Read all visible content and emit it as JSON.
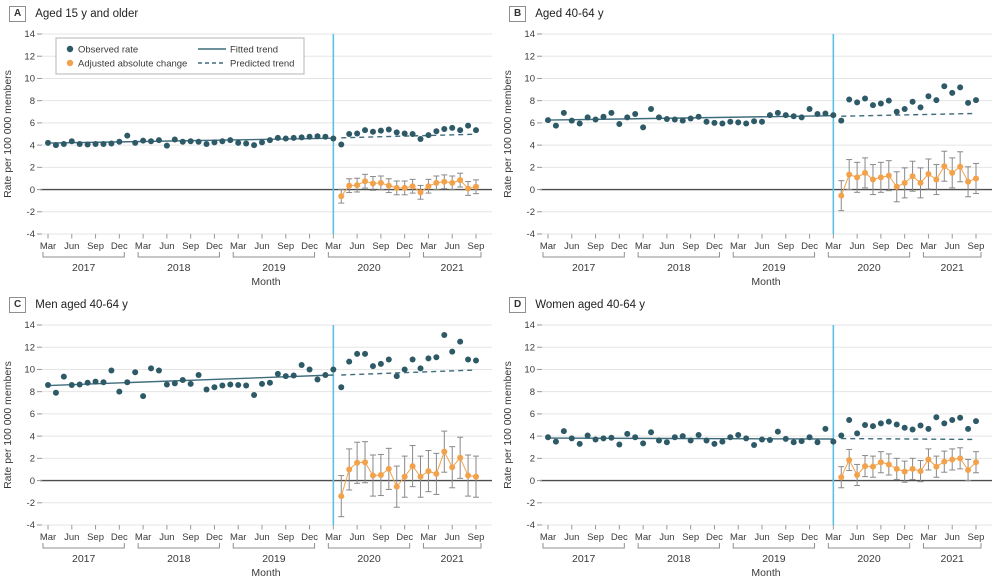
{
  "figure": {
    "ylabel": "Rate per 100 000 members",
    "xlabel": "Month",
    "legend": {
      "observed": "Observed rate",
      "change": "Adjusted absolute change",
      "fitted": "Fitted trend",
      "predicted": "Predicted trend"
    },
    "colors": {
      "observed": "#2E5A68",
      "change": "#F2A24B",
      "trend": "#3F6C7C",
      "intervention": "#5BC2E7",
      "grid": "#E5E5E5",
      "zero": "#4D4D4D",
      "error": "#898989",
      "text": "#3A3A3A"
    }
  },
  "chart_data": [
    {
      "type": "scatter",
      "panel_label": "A",
      "title": "Aged 15 y and older",
      "show_legend": true,
      "ylim": [
        -4,
        14
      ],
      "yticks": [
        14,
        12,
        10,
        8,
        6,
        4,
        2,
        0,
        -2,
        -4
      ],
      "x_tick_months": [
        0,
        3,
        6,
        9,
        12,
        15,
        18,
        21,
        24,
        27,
        30,
        33,
        36,
        39,
        42,
        45,
        48,
        51,
        54
      ],
      "x_tick_labels": [
        "Mar",
        "Jun",
        "Sep",
        "Dec",
        "Mar",
        "Jun",
        "Sep",
        "Dec",
        "Mar",
        "Jun",
        "Sep",
        "Dec",
        "Mar",
        "Jun",
        "Sep",
        "Dec",
        "Mar",
        "Jun",
        "Sep"
      ],
      "year_groups": [
        {
          "label": "2017",
          "start": 0,
          "end": 9
        },
        {
          "label": "2018",
          "start": 12,
          "end": 21
        },
        {
          "label": "2019",
          "start": 24,
          "end": 33
        },
        {
          "label": "2020",
          "start": 36,
          "end": 45
        },
        {
          "label": "2021",
          "start": 48,
          "end": 54
        }
      ],
      "intervention_month": 36,
      "pre_observed": {
        "start_month": 0,
        "values": [
          4.2,
          4.0,
          4.1,
          4.35,
          4.1,
          4.05,
          4.1,
          4.1,
          4.15,
          4.3,
          4.85,
          4.2,
          4.4,
          4.35,
          4.45,
          3.95,
          4.5,
          4.3,
          4.35,
          4.3,
          4.1,
          4.25,
          4.35,
          4.45,
          4.2,
          4.15,
          4.0,
          4.25,
          4.45,
          4.65,
          4.6,
          4.65,
          4.7,
          4.75,
          4.8,
          4.75,
          4.6
        ]
      },
      "post_observed": {
        "start_month": 37,
        "values": [
          4.05,
          5.0,
          5.05,
          5.35,
          5.2,
          5.3,
          5.4,
          5.15,
          5.05,
          5.0,
          4.55,
          4.9,
          5.25,
          5.45,
          5.55,
          5.35,
          5.75,
          5.35
        ]
      },
      "fitted_trend": {
        "x": [
          0,
          36
        ],
        "y": [
          4.18,
          4.62
        ]
      },
      "predicted_trend": {
        "x": [
          37,
          54
        ],
        "y": [
          4.66,
          4.98
        ]
      },
      "adjusted_change": {
        "start_month": 37,
        "ci_half": 0.62,
        "values": [
          -0.6,
          0.35,
          0.4,
          0.75,
          0.55,
          0.6,
          0.35,
          0.15,
          0.15,
          0.3,
          -0.25,
          0.3,
          0.6,
          0.7,
          0.6,
          0.85,
          0.1,
          0.25
        ]
      }
    },
    {
      "type": "scatter",
      "panel_label": "B",
      "title": "Aged 40-64 y",
      "show_legend": false,
      "ylim": [
        -4,
        14
      ],
      "yticks": [
        14,
        12,
        10,
        8,
        6,
        4,
        2,
        0,
        -2,
        -4
      ],
      "x_tick_months": [
        0,
        3,
        6,
        9,
        12,
        15,
        18,
        21,
        24,
        27,
        30,
        33,
        36,
        39,
        42,
        45,
        48,
        51,
        54
      ],
      "x_tick_labels": [
        "Mar",
        "Jun",
        "Sep",
        "Dec",
        "Mar",
        "Jun",
        "Sep",
        "Dec",
        "Mar",
        "Jun",
        "Sep",
        "Dec",
        "Mar",
        "Jun",
        "Sep",
        "Dec",
        "Mar",
        "Jun",
        "Sep"
      ],
      "year_groups": [
        {
          "label": "2017",
          "start": 0,
          "end": 9
        },
        {
          "label": "2018",
          "start": 12,
          "end": 21
        },
        {
          "label": "2019",
          "start": 24,
          "end": 33
        },
        {
          "label": "2020",
          "start": 36,
          "end": 45
        },
        {
          "label": "2021",
          "start": 48,
          "end": 54
        }
      ],
      "intervention_month": 36,
      "pre_observed": {
        "start_month": 0,
        "values": [
          6.25,
          5.75,
          6.9,
          6.2,
          5.95,
          6.5,
          6.3,
          6.55,
          6.9,
          5.9,
          6.5,
          6.8,
          5.6,
          7.25,
          6.5,
          6.35,
          6.3,
          6.2,
          6.4,
          6.55,
          6.1,
          6.0,
          5.95,
          6.1,
          6.05,
          5.95,
          6.15,
          6.1,
          6.7,
          6.9,
          6.7,
          6.6,
          6.5,
          7.25,
          6.8,
          6.85,
          6.7
        ]
      },
      "post_observed": {
        "start_month": 37,
        "values": [
          6.2,
          8.1,
          7.85,
          8.2,
          7.6,
          7.75,
          8.0,
          7.0,
          7.25,
          7.9,
          7.4,
          8.4,
          8.05,
          9.3,
          8.7,
          9.2,
          7.8,
          8.05
        ]
      },
      "fitted_trend": {
        "x": [
          0,
          36
        ],
        "y": [
          6.25,
          6.65
        ]
      },
      "predicted_trend": {
        "x": [
          37,
          54
        ],
        "y": [
          6.6,
          6.85
        ]
      },
      "adjusted_change": {
        "start_month": 37,
        "ci_half": 1.35,
        "values": [
          -0.55,
          1.35,
          1.1,
          1.5,
          0.9,
          1.1,
          1.25,
          0.25,
          0.6,
          1.2,
          0.6,
          1.4,
          0.9,
          2.1,
          1.5,
          2.05,
          0.7,
          1.0
        ]
      }
    },
    {
      "type": "scatter",
      "panel_label": "C",
      "title": "Men aged 40-64 y",
      "show_legend": false,
      "ylim": [
        -4,
        14
      ],
      "yticks": [
        14,
        12,
        10,
        8,
        6,
        4,
        2,
        0,
        -2,
        -4
      ],
      "x_tick_months": [
        0,
        3,
        6,
        9,
        12,
        15,
        18,
        21,
        24,
        27,
        30,
        33,
        36,
        39,
        42,
        45,
        48,
        51,
        54
      ],
      "x_tick_labels": [
        "Mar",
        "Jun",
        "Sep",
        "Dec",
        "Mar",
        "Jun",
        "Sep",
        "Dec",
        "Mar",
        "Jun",
        "Sep",
        "Dec",
        "Mar",
        "Jun",
        "Sep",
        "Dec",
        "Mar",
        "Jun",
        "Sep"
      ],
      "year_groups": [
        {
          "label": "2017",
          "start": 0,
          "end": 9
        },
        {
          "label": "2018",
          "start": 12,
          "end": 21
        },
        {
          "label": "2019",
          "start": 24,
          "end": 33
        },
        {
          "label": "2020",
          "start": 36,
          "end": 45
        },
        {
          "label": "2021",
          "start": 48,
          "end": 54
        }
      ],
      "intervention_month": 36,
      "pre_observed": {
        "start_month": 0,
        "values": [
          8.6,
          7.9,
          9.35,
          8.6,
          8.65,
          8.8,
          8.9,
          8.85,
          9.9,
          8.0,
          8.85,
          9.75,
          7.6,
          10.1,
          9.9,
          8.65,
          8.75,
          9.05,
          8.7,
          9.5,
          8.2,
          8.4,
          8.55,
          8.65,
          8.6,
          8.55,
          7.7,
          8.7,
          8.8,
          9.6,
          9.4,
          9.45,
          10.4,
          10.0,
          9.1,
          9.5,
          10.0
        ]
      },
      "post_observed": {
        "start_month": 37,
        "values": [
          8.4,
          10.7,
          11.4,
          11.4,
          10.3,
          10.5,
          10.9,
          9.4,
          10.0,
          10.9,
          10.1,
          11.0,
          11.1,
          13.1,
          11.6,
          12.5,
          10.9,
          10.8
        ]
      },
      "fitted_trend": {
        "x": [
          0,
          36
        ],
        "y": [
          8.55,
          9.5
        ]
      },
      "predicted_trend": {
        "x": [
          37,
          54
        ],
        "y": [
          9.5,
          9.95
        ]
      },
      "adjusted_change": {
        "start_month": 37,
        "ci_half": 1.85,
        "values": [
          -1.4,
          1.0,
          1.6,
          1.65,
          0.45,
          0.5,
          1.05,
          -0.55,
          0.35,
          1.3,
          0.35,
          0.85,
          0.6,
          2.6,
          1.2,
          2.05,
          0.45,
          0.35
        ]
      }
    },
    {
      "type": "scatter",
      "panel_label": "D",
      "title": "Women aged 40-64 y",
      "show_legend": false,
      "ylim": [
        -4,
        14
      ],
      "yticks": [
        14,
        12,
        10,
        8,
        6,
        4,
        2,
        0,
        -2,
        -4
      ],
      "x_tick_months": [
        0,
        3,
        6,
        9,
        12,
        15,
        18,
        21,
        24,
        27,
        30,
        33,
        36,
        39,
        42,
        45,
        48,
        51,
        54
      ],
      "x_tick_labels": [
        "Mar",
        "Jun",
        "Sep",
        "Dec",
        "Mar",
        "Jun",
        "Sep",
        "Dec",
        "Mar",
        "Jun",
        "Sep",
        "Dec",
        "Mar",
        "Jun",
        "Sep",
        "Dec",
        "Mar",
        "Jun",
        "Sep"
      ],
      "year_groups": [
        {
          "label": "2017",
          "start": 0,
          "end": 9
        },
        {
          "label": "2018",
          "start": 12,
          "end": 21
        },
        {
          "label": "2019",
          "start": 24,
          "end": 33
        },
        {
          "label": "2020",
          "start": 36,
          "end": 45
        },
        {
          "label": "2021",
          "start": 48,
          "end": 54
        }
      ],
      "intervention_month": 36,
      "pre_observed": {
        "start_month": 0,
        "values": [
          3.9,
          3.5,
          4.45,
          3.8,
          3.3,
          4.05,
          3.7,
          3.8,
          3.85,
          3.25,
          4.2,
          3.9,
          3.35,
          4.35,
          3.6,
          3.45,
          3.9,
          4.0,
          3.6,
          4.1,
          3.6,
          3.3,
          3.5,
          3.9,
          4.1,
          3.8,
          3.2,
          3.7,
          3.65,
          4.4,
          3.75,
          3.45,
          3.55,
          3.9,
          3.45,
          4.65,
          3.5
        ]
      },
      "post_observed": {
        "start_month": 37,
        "values": [
          4.05,
          5.45,
          4.25,
          5.0,
          4.9,
          5.15,
          5.3,
          5.05,
          4.75,
          4.6,
          4.95,
          4.65,
          5.7,
          5.15,
          5.45,
          5.65,
          4.65,
          5.35
        ]
      },
      "fitted_trend": {
        "x": [
          0,
          36
        ],
        "y": [
          3.82,
          3.74
        ]
      },
      "predicted_trend": {
        "x": [
          37,
          54
        ],
        "y": [
          3.78,
          3.7
        ]
      },
      "adjusted_change": {
        "start_month": 37,
        "ci_half": 0.95,
        "values": [
          0.3,
          1.85,
          0.5,
          1.3,
          1.25,
          1.65,
          1.45,
          1.05,
          0.8,
          1.05,
          0.85,
          1.9,
          1.25,
          1.7,
          1.9,
          2.0,
          0.95,
          1.65
        ]
      }
    }
  ]
}
